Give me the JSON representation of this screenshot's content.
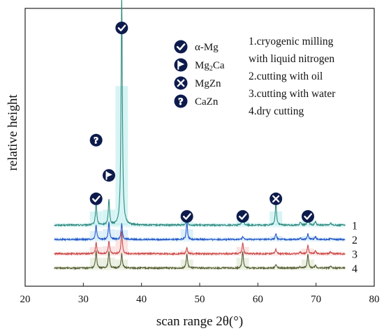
{
  "chart_data": {
    "type": "line",
    "title": "",
    "xlabel": "scan range 2θ(°)",
    "ylabel": "relative height",
    "xlim": [
      20,
      80
    ],
    "xticks": [
      20,
      30,
      40,
      50,
      60,
      70,
      80
    ],
    "x_range_data": [
      25,
      75
    ],
    "grid": false,
    "legend_position": "top-center",
    "legend": [
      {
        "symbol": "check",
        "label": "α-Mg",
        "label_main": "α-Mg",
        "label_sub": ""
      },
      {
        "symbol": "flag",
        "label": "Mg2Ca",
        "label_main": "Mg",
        "label_sub": "2",
        "label_tail": "Ca"
      },
      {
        "symbol": "cross",
        "label": "MgZn",
        "label_main": "MgZn",
        "label_sub": ""
      },
      {
        "symbol": "question",
        "label": "CaZn",
        "label_main": "CaZn",
        "label_sub": ""
      }
    ],
    "notes": [
      "1.cryogenic milling",
      "with liquid nitrogen",
      "2.cutting with oil",
      "3.cutting with water",
      "4.dry cutting"
    ],
    "series": [
      {
        "name": "1",
        "color": "#2e8b7e",
        "fill": "#bdecef",
        "baseline": 0.8,
        "scale": 1.0
      },
      {
        "name": "2",
        "color": "#2456c9",
        "fill": "#c8e6f5",
        "baseline": 0.55,
        "scale": 0.9
      },
      {
        "name": "3",
        "color": "#cc4a48",
        "fill": "#f7d2d2",
        "baseline": 0.3,
        "scale": 0.85
      },
      {
        "name": "4",
        "color": "#545b33",
        "fill": "#dde8cf",
        "baseline": 0.05,
        "scale": 0.8
      }
    ],
    "peaks": [
      {
        "x": 32.2,
        "heights": [
          0.4,
          0.25,
          0.2,
          0.3
        ]
      },
      {
        "x": 34.4,
        "heights": [
          0.45,
          0.3,
          0.22,
          0.3
        ]
      },
      {
        "x": 36.6,
        "heights": [
          4.05,
          0.28,
          0.4,
          0.25
        ]
      },
      {
        "x": 47.8,
        "heights": [
          0.12,
          0.3,
          0.1,
          0.25
        ]
      },
      {
        "x": 57.4,
        "heights": [
          0.18,
          0.05,
          0.2,
          0.3
        ]
      },
      {
        "x": 63.1,
        "heights": [
          0.4,
          0.1,
          0.08,
          0.07
        ]
      },
      {
        "x": 67.3,
        "heights": [
          0.05,
          0.03,
          0.03,
          0.02
        ]
      },
      {
        "x": 68.6,
        "heights": [
          0.15,
          0.1,
          0.15,
          0.25
        ]
      },
      {
        "x": 69.9,
        "heights": [
          0.06,
          0.05,
          0.05,
          0.05
        ]
      },
      {
        "x": 72.5,
        "heights": [
          0.04,
          0.03,
          0.03,
          0.03
        ]
      }
    ],
    "peak_markers": [
      {
        "x": 32.2,
        "symbol": "check",
        "level": 1
      },
      {
        "x": 32.2,
        "symbol": "question",
        "level": 2
      },
      {
        "x": 34.4,
        "symbol": "flag",
        "level": 1.4
      },
      {
        "x": 36.6,
        "symbol": "check",
        "level": 4.3
      },
      {
        "x": 47.8,
        "symbol": "check",
        "level": 0.7
      },
      {
        "x": 57.4,
        "symbol": "check",
        "level": 0.7
      },
      {
        "x": 63.1,
        "symbol": "cross",
        "level": 1
      },
      {
        "x": 68.6,
        "symbol": "check",
        "level": 0.7
      }
    ]
  }
}
